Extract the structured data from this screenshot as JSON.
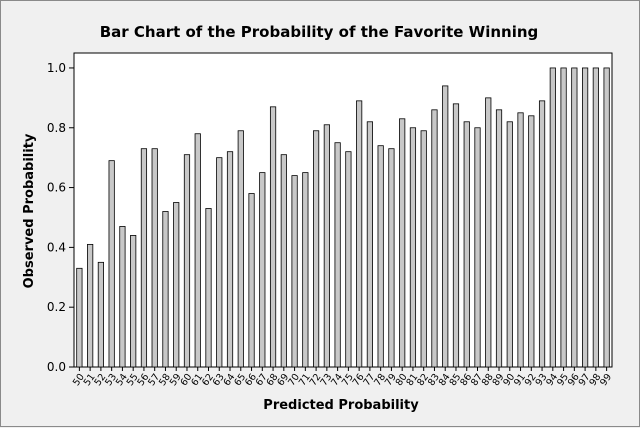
{
  "chart_data": {
    "type": "bar",
    "title": "Bar Chart of the Probability of the Favorite Winning",
    "xlabel": "Predicted Probability",
    "ylabel": "Observed Probability",
    "ylim": [
      0,
      1.05
    ],
    "yticks": [
      "0.0",
      "0.2",
      "0.4",
      "0.6",
      "0.8",
      "1.0"
    ],
    "grid": false,
    "bar_fill": "#c8c8c8",
    "bar_stroke": "#000000",
    "plot_background": "#ffffff",
    "page_background": "#f0f0f0",
    "categories": [
      "50",
      "51",
      "52",
      "53",
      "54",
      "55",
      "56",
      "57",
      "58",
      "59",
      "60",
      "61",
      "62",
      "63",
      "64",
      "65",
      "66",
      "67",
      "68",
      "69",
      "70",
      "71",
      "72",
      "73",
      "74",
      "75",
      "76",
      "77",
      "78",
      "79",
      "80",
      "81",
      "82",
      "83",
      "84",
      "85",
      "86",
      "87",
      "88",
      "89",
      "90",
      "91",
      "92",
      "93",
      "94",
      "95",
      "96",
      "97",
      "98",
      "99"
    ],
    "values": [
      0.33,
      0.41,
      0.35,
      0.69,
      0.47,
      0.44,
      0.73,
      0.73,
      0.52,
      0.55,
      0.71,
      0.78,
      0.53,
      0.7,
      0.72,
      0.79,
      0.58,
      0.65,
      0.87,
      0.71,
      0.64,
      0.65,
      0.79,
      0.81,
      0.75,
      0.72,
      0.89,
      0.82,
      0.74,
      0.73,
      0.83,
      0.8,
      0.79,
      0.86,
      0.94,
      0.88,
      0.82,
      0.8,
      0.9,
      0.86,
      0.82,
      0.85,
      0.84,
      0.89,
      1.0,
      1.0,
      1.0,
      1.0,
      1.0,
      1.0
    ]
  }
}
